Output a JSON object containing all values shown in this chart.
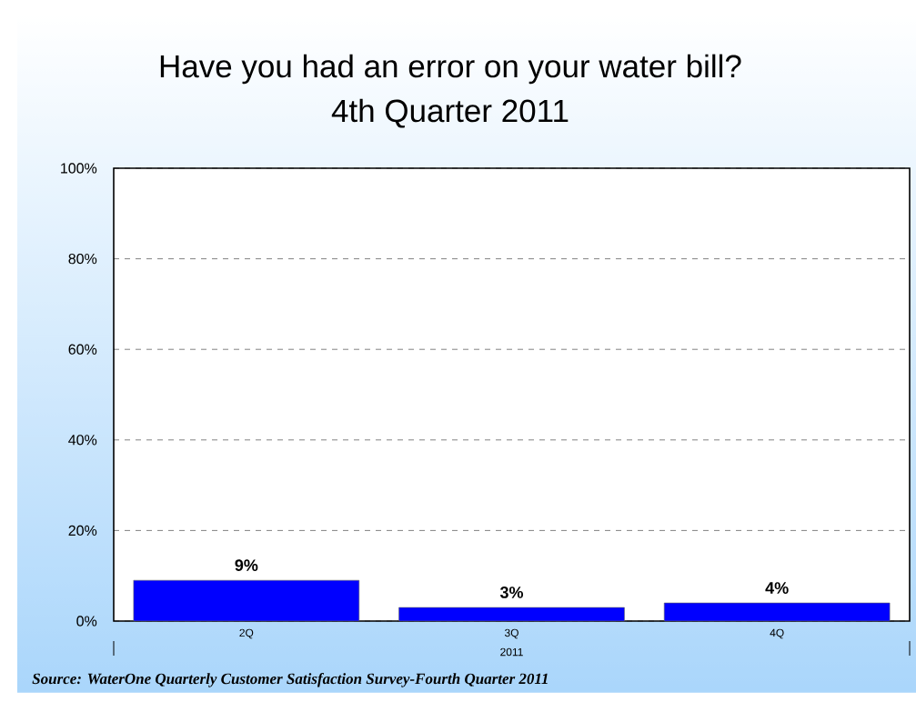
{
  "chart_data": {
    "type": "bar",
    "title": "Have you had an error on your water bill?",
    "subtitle": "4th Quarter 2011",
    "xlabel": "2011",
    "categories": [
      "2Q",
      "3Q",
      "4Q"
    ],
    "values": [
      9,
      3,
      4
    ],
    "value_labels": [
      "9%",
      "3%",
      "4%"
    ],
    "color": "#0000ff",
    "ylim": [
      0,
      100
    ],
    "yticks": [
      {
        "value": 0,
        "label": "0%"
      },
      {
        "value": 20,
        "label": "20%"
      },
      {
        "value": 40,
        "label": "40%"
      },
      {
        "value": 60,
        "label": "60%"
      },
      {
        "value": 80,
        "label": "80%"
      },
      {
        "value": 100,
        "label": "100%"
      }
    ],
    "grid": "y",
    "annotations": [
      "Source: WaterOne Quarterly Customer Satisfaction Survey-Fourth Quarter 2011"
    ]
  }
}
